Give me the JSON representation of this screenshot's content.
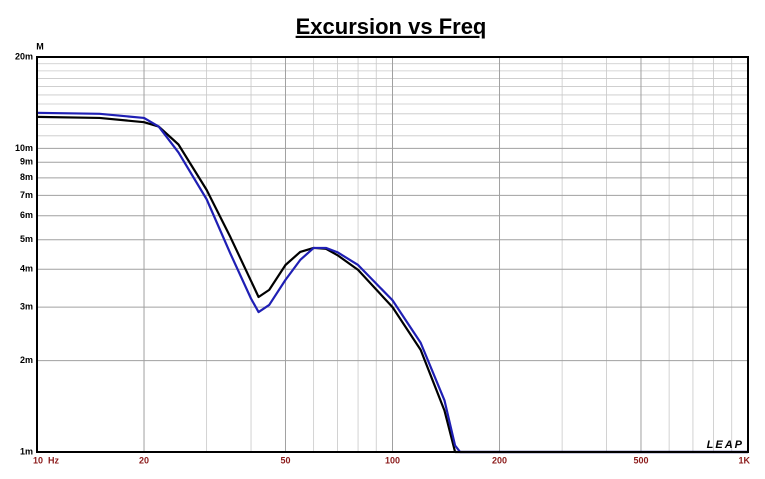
{
  "chart_data": {
    "type": "line",
    "title": "Excursion vs Freq",
    "y_unit": "M",
    "watermark": "LEAP",
    "x": [
      10,
      15,
      20,
      22,
      25,
      30,
      35,
      40,
      42,
      45,
      50,
      55,
      60,
      65,
      70,
      80,
      100,
      120,
      140,
      150,
      155,
      1000
    ],
    "series": [
      {
        "color": "#000000",
        "values": [
          0.0127,
          0.0126,
          0.0122,
          0.0118,
          0.0103,
          0.0073,
          0.0051,
          0.00366,
          0.00324,
          0.00342,
          0.00413,
          0.00456,
          0.0047,
          0.00467,
          0.00445,
          0.00398,
          0.003,
          0.00217,
          0.00137,
          0.001,
          0.001,
          0.001
        ]
      },
      {
        "color": "#1f1fb4",
        "values": [
          0.0131,
          0.013,
          0.0126,
          0.0118,
          0.0097,
          0.0068,
          0.0045,
          0.0032,
          0.00289,
          0.00305,
          0.00369,
          0.00429,
          0.0047,
          0.0047,
          0.00455,
          0.00413,
          0.00316,
          0.00229,
          0.00148,
          0.00105,
          0.001,
          0.001
        ]
      }
    ],
    "xscale": "log",
    "yscale": "log",
    "xlim": [
      10,
      1000
    ],
    "ylim": [
      0.001,
      0.02
    ],
    "xticks": [
      {
        "value": 10,
        "label": "10  Hz"
      },
      20,
      50,
      100,
      200,
      500,
      {
        "value": 1000,
        "label": "1K"
      }
    ],
    "xminorticks": [
      30,
      40,
      60,
      70,
      80,
      90,
      300,
      400,
      600,
      700,
      800,
      900
    ],
    "yticks": [
      {
        "value": 0.02,
        "label": "20m"
      },
      {
        "value": 0.01,
        "label": "10m"
      },
      {
        "value": 0.009,
        "label": "9m"
      },
      {
        "value": 0.008,
        "label": "8m"
      },
      {
        "value": 0.007,
        "label": "7m"
      },
      {
        "value": 0.006,
        "label": "6m"
      },
      {
        "value": 0.005,
        "label": "5m"
      },
      {
        "value": 0.004,
        "label": "4m"
      },
      {
        "value": 0.003,
        "label": "3m"
      },
      {
        "value": 0.002,
        "label": "2m"
      },
      {
        "value": 0.001,
        "label": "1m"
      }
    ],
    "yminorticks": [
      0.011,
      0.012,
      0.013,
      0.014,
      0.015,
      0.016,
      0.017,
      0.018,
      0.019
    ],
    "grid": true
  }
}
